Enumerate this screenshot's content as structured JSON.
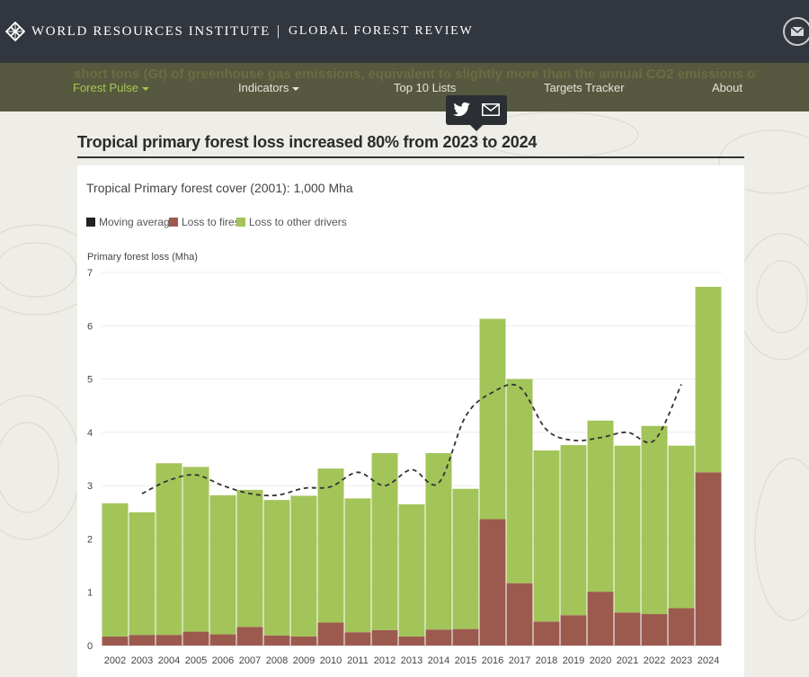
{
  "header": {
    "org_name": "WORLD RESOURCES INSTITUTE",
    "separator": "|",
    "site_name": "GLOBAL FOREST REVIEW",
    "logo_icon": "wri-logo-icon",
    "mail_icon": "envelope-icon"
  },
  "nav": {
    "ghost_text": "short tons (Gt) of greenhouse gas emissions, equivalent to slightly more than the annual CO2 emissions of India from fossil fuel use.",
    "items": [
      {
        "label": "Forest Pulse",
        "dropdown": true,
        "active": true
      },
      {
        "label": "Indicators",
        "dropdown": true,
        "active": false
      },
      {
        "label": "Top 10 Lists",
        "dropdown": false,
        "active": false
      },
      {
        "label": "Targets Tracker",
        "dropdown": false,
        "active": false
      },
      {
        "label": "About",
        "dropdown": false,
        "active": false
      }
    ]
  },
  "share": {
    "icons": [
      "twitter-icon",
      "email-icon"
    ]
  },
  "headline": "Tropical primary forest loss increased 80% from 2023 to 2024",
  "colors": {
    "header_bg": "#32373f",
    "nav_bg": "#56583f",
    "active_nav": "#a7c84e",
    "fires": "#9c5a4f",
    "other_drivers": "#a3c459",
    "moving_average": "#333333"
  },
  "chart_data": {
    "type": "bar",
    "stacked": true,
    "subtitle": "Tropical Primary forest cover (2001): 1,000 Mha",
    "ylabel": "Primary forest loss (Mha)",
    "ylim": [
      0,
      7
    ],
    "yticks": [
      0,
      1,
      2,
      3,
      4,
      5,
      6,
      7
    ],
    "legend_position": "top-left",
    "grid": true,
    "legend": [
      "Moving average",
      "Loss to fires",
      "Loss to other drivers"
    ],
    "categories": [
      "2002",
      "2003",
      "2004",
      "2005",
      "2006",
      "2007",
      "2008",
      "2009",
      "2010",
      "2011",
      "2012",
      "2013",
      "2014",
      "2015",
      "2016",
      "2017",
      "2018",
      "2019",
      "2020",
      "2021",
      "2022",
      "2023",
      "2024"
    ],
    "series": [
      {
        "name": "Loss to fires",
        "color": "#9c5a4f",
        "values": [
          0.17,
          0.2,
          0.2,
          0.26,
          0.21,
          0.35,
          0.19,
          0.17,
          0.43,
          0.25,
          0.29,
          0.17,
          0.3,
          0.31,
          2.37,
          1.17,
          0.45,
          0.57,
          1.01,
          0.62,
          0.59,
          0.7,
          3.25
        ]
      },
      {
        "name": "Loss to other drivers",
        "color": "#a3c459",
        "values": [
          2.5,
          2.3,
          3.22,
          3.09,
          2.61,
          2.57,
          2.54,
          2.64,
          2.89,
          2.51,
          3.32,
          2.48,
          3.31,
          2.63,
          3.76,
          3.83,
          3.21,
          3.19,
          3.21,
          3.13,
          3.53,
          3.05,
          3.48
        ]
      }
    ],
    "moving_average": {
      "name": "Moving average",
      "x": [
        "2003",
        "2004",
        "2005",
        "2006",
        "2007",
        "2008",
        "2009",
        "2010",
        "2011",
        "2012",
        "2013",
        "2014",
        "2015",
        "2016",
        "2017",
        "2018",
        "2019",
        "2020",
        "2021",
        "2022",
        "2023"
      ],
      "values": [
        2.85,
        3.1,
        3.2,
        3.0,
        2.85,
        2.82,
        2.95,
        2.98,
        3.25,
        3.0,
        3.3,
        3.05,
        4.3,
        4.75,
        4.85,
        4.05,
        3.85,
        3.9,
        4.0,
        3.85,
        4.9
      ]
    }
  }
}
